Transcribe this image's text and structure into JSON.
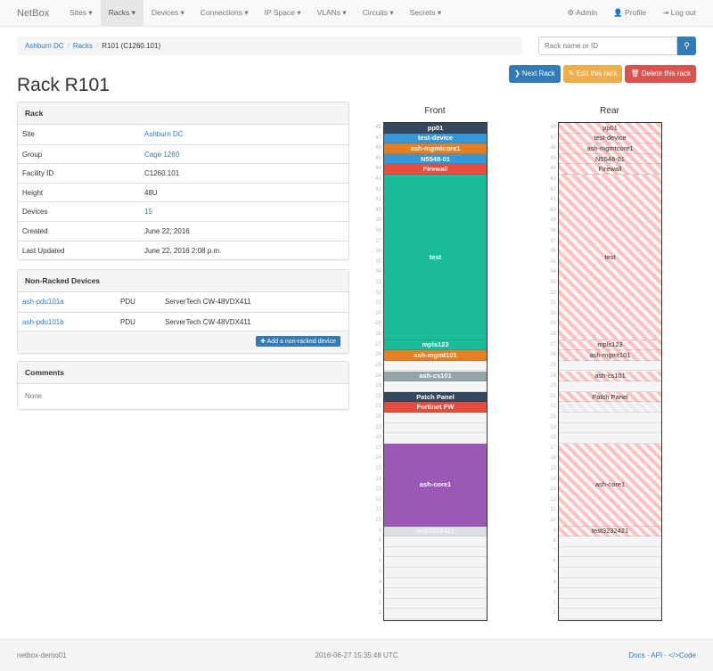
{
  "nav": {
    "brand": "NetBox",
    "items": [
      "Sites ▾",
      "Racks ▾",
      "Devices ▾",
      "Connections ▾",
      "IP Space ▾",
      "VLANs ▾",
      "Circuits ▾",
      "Secrets ▾"
    ],
    "active": 1,
    "admin": "⚙ Admin",
    "profile": "👤 Profile",
    "logout": "⇥ Log out"
  },
  "breadcrumb": [
    "Ashburn DC",
    "Racks",
    "R101 (C1260.101)"
  ],
  "search": {
    "placeholder": "Rack name or ID",
    "icon": "search-icon"
  },
  "buttons": {
    "next": "❯ Next Rack",
    "edit": "✎ Edit this rack",
    "delete": "🗑 Delete this rack",
    "colors": {
      "next": "#337ab7",
      "edit": "#f0ad4e",
      "delete": "#d9534f"
    }
  },
  "title": "Rack R101",
  "rack_panel": {
    "heading": "Rack",
    "rows": [
      {
        "k": "Site",
        "v": "Ashburn DC",
        "link": true
      },
      {
        "k": "Group",
        "v": "Cage 1260",
        "link": true
      },
      {
        "k": "Facility ID",
        "v": "C1260.101"
      },
      {
        "k": "Height",
        "v": "48U"
      },
      {
        "k": "Devices",
        "v": "15",
        "link": true
      },
      {
        "k": "Created",
        "v": "June 22, 2016"
      },
      {
        "k": "Last Updated",
        "v": "June 22, 2016 2:08 p.m."
      }
    ]
  },
  "nonracked": {
    "heading": "Non-Racked Devices",
    "rows": [
      {
        "name": "ash-pdu101a",
        "role": "PDU",
        "type": "ServerTech CW-48VDX411"
      },
      {
        "name": "ash-pdu101b",
        "role": "PDU",
        "type": "ServerTech CW-48VDX411"
      }
    ],
    "add": "✚ Add a non-racked device"
  },
  "comments": {
    "heading": "Comments",
    "body": "None"
  },
  "rack": {
    "units": 48,
    "front_label": "Front",
    "rear_label": "Rear",
    "devices": [
      {
        "name": "pp01",
        "top": 48,
        "height": 1,
        "color": "#34495e",
        "rear": true
      },
      {
        "name": "test-device",
        "top": 47,
        "height": 1,
        "color": "#3498db",
        "rear": true
      },
      {
        "name": "ash-mgmtcore1",
        "top": 46,
        "height": 1,
        "color": "#e67e22",
        "rear": true
      },
      {
        "name": "N5548-01",
        "top": 45,
        "height": 1,
        "color": "#3498db",
        "rear": true
      },
      {
        "name": "Firewall",
        "top": 44,
        "height": 1,
        "color": "#e74c3c",
        "rear": true
      },
      {
        "name": "test",
        "top": 43,
        "height": 16,
        "color": "#1abc9c",
        "rear": true
      },
      {
        "name": "mpls123",
        "top": 27,
        "height": 1,
        "color": "#1abc9c",
        "rear": true
      },
      {
        "name": "ash-mgmt101",
        "top": 26,
        "height": 1,
        "color": "#e67e22",
        "rear": true
      },
      {
        "name": "ash-cs101",
        "top": 24,
        "height": 1,
        "color": "#95a5a6",
        "rear": true
      },
      {
        "name": "Patch Panel",
        "top": 22,
        "height": 1,
        "color": "#34495e",
        "rear": true
      },
      {
        "name": "Fortinet FW",
        "top": 21,
        "height": 1,
        "color": "#e74c3c",
        "rear": false
      },
      {
        "name": "ash-core1",
        "top": 17,
        "height": 8,
        "color": "#9b59b6",
        "rear": true
      },
      {
        "name": "test3232421",
        "top": 9,
        "height": 1,
        "color": "#dce0e3",
        "rear": true
      }
    ]
  },
  "footer": {
    "host": "netbox-demo01",
    "time": "2016-06-27 15:35:48 UTC",
    "links": "Docs · API · </>Code"
  }
}
